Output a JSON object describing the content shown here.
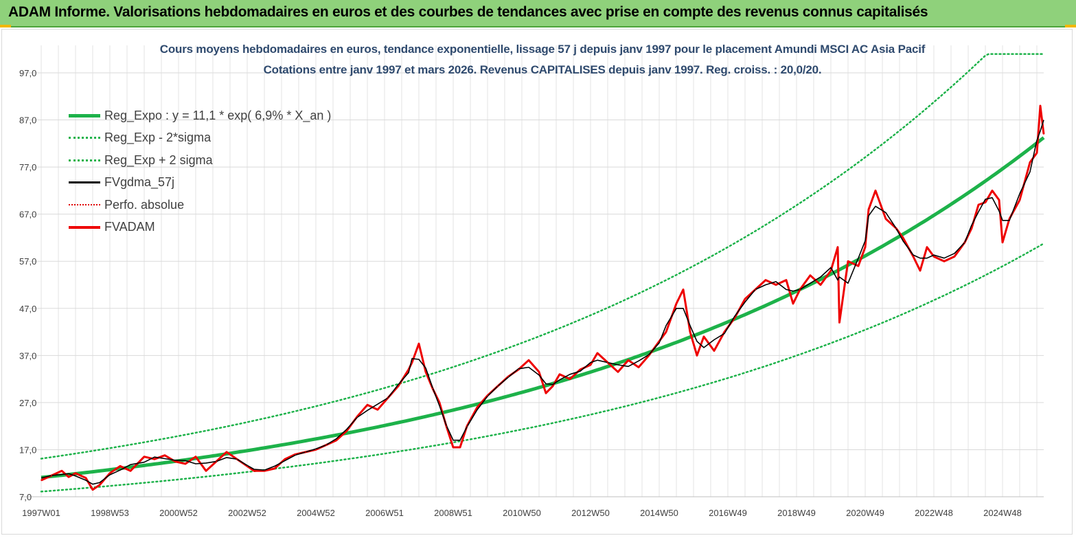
{
  "header": {
    "title": "ADAM Informe. Valorisations hebdomadaires en euros et des courbes de tendances avec prise en compte des revenus connus capitalisés"
  },
  "chart_data": {
    "type": "line",
    "title": "Cours moyens hebdomadaires en euros, tendance exponentielle, lissage 57 j depuis janv 1997  pour le placement Amundi MSCI AC Asia Pacif",
    "subtitle": "Cotations entre janv 1997 et mars 2026. Revenus CAPITALISES  depuis janv 1997. Reg. croiss. : 20,0/20.",
    "ylim": [
      7,
      100
    ],
    "y_ticks": [
      "7,0",
      "17,0",
      "27,0",
      "37,0",
      "47,0",
      "57,0",
      "67,0",
      "77,0",
      "87,0",
      "97,0"
    ],
    "y_tick_values": [
      7,
      17,
      27,
      37,
      47,
      57,
      67,
      77,
      87,
      97
    ],
    "xlim": [
      1997.0,
      2026.2
    ],
    "x_ticks": [
      "1997W01",
      "1998W53",
      "2000W52",
      "2002W52",
      "2004W52",
      "2006W51",
      "2008W51",
      "2010W50",
      "2012W50",
      "2014W50",
      "2016W49",
      "2018W49",
      "2020W49",
      "2022W48",
      "2024W48"
    ],
    "x_tick_values": [
      1997.0,
      1999.0,
      2001.0,
      2003.0,
      2005.0,
      2007.0,
      2009.0,
      2011.0,
      2013.0,
      2015.0,
      2017.0,
      2019.0,
      2021.0,
      2023.0,
      2025.0
    ],
    "series": [
      {
        "name": "Reg_Expo : y = 11,1 * exp( 6,9% *  X_an )",
        "color": "#1db24a",
        "style": "solid-thick",
        "formula": {
          "a": 11.1,
          "r": 0.069
        }
      },
      {
        "name": "Reg_Exp - 2*sigma",
        "color": "#1db24a",
        "style": "dotted",
        "formula": {
          "a": 11.1,
          "r": 0.069,
          "factor": 0.73
        }
      },
      {
        "name": "Reg_Exp + 2 sigma",
        "color": "#1db24a",
        "style": "dotted",
        "formula": {
          "a": 11.1,
          "r": 0.069,
          "factor": 1.36
        },
        "cap": 101
      },
      {
        "name": "FVgdma_57j",
        "color": "#000000",
        "style": "solid"
      },
      {
        "name": "Perfo. absolue",
        "color": "#e00000",
        "style": "dotted-thin"
      },
      {
        "name": "FVADAM",
        "color": "#ee0000",
        "style": "solid-thick",
        "x": [
          1997.0,
          1997.3,
          1997.6,
          1997.8,
          1998.0,
          1998.3,
          1998.5,
          1998.7,
          1999.0,
          1999.3,
          1999.6,
          2000.0,
          2000.3,
          2000.6,
          2000.9,
          2001.2,
          2001.5,
          2001.8,
          2002.1,
          2002.4,
          2002.7,
          2003.0,
          2003.2,
          2003.5,
          2003.8,
          2004.1,
          2004.4,
          2004.7,
          2005.0,
          2005.3,
          2005.6,
          2005.9,
          2006.2,
          2006.5,
          2006.8,
          2007.1,
          2007.4,
          2007.7,
          2007.8,
          2008.0,
          2008.2,
          2008.4,
          2008.6,
          2008.8,
          2009.0,
          2009.2,
          2009.4,
          2009.7,
          2010.0,
          2010.3,
          2010.6,
          2010.9,
          2011.2,
          2011.5,
          2011.7,
          2011.9,
          2012.1,
          2012.4,
          2012.7,
          2013.0,
          2013.2,
          2013.5,
          2013.8,
          2014.1,
          2014.4,
          2014.7,
          2015.0,
          2015.2,
          2015.5,
          2015.7,
          2015.9,
          2016.1,
          2016.3,
          2016.6,
          2016.9,
          2017.2,
          2017.5,
          2017.8,
          2018.1,
          2018.4,
          2018.7,
          2018.9,
          2019.1,
          2019.4,
          2019.7,
          2020.0,
          2020.2,
          2020.25,
          2020.5,
          2020.8,
          2021.0,
          2021.1,
          2021.3,
          2021.6,
          2021.9,
          2022.1,
          2022.4,
          2022.6,
          2022.8,
          2023.0,
          2023.3,
          2023.6,
          2023.9,
          2024.1,
          2024.3,
          2024.5,
          2024.7,
          2024.9,
          2025.0,
          2025.2,
          2025.5,
          2025.8,
          2026.0,
          2026.1,
          2026.2
        ],
        "values": [
          10.5,
          11.5,
          12.5,
          11.2,
          12.0,
          11.0,
          8.5,
          9.5,
          12.0,
          13.5,
          12.5,
          15.5,
          15.0,
          15.8,
          14.5,
          14.0,
          15.5,
          12.5,
          14.5,
          16.5,
          15.0,
          13.5,
          12.5,
          12.5,
          13.0,
          15.0,
          16.0,
          16.5,
          17.0,
          18.0,
          19.0,
          21.0,
          24.0,
          26.5,
          25.5,
          28.0,
          30.5,
          34.0,
          35.5,
          39.5,
          33.5,
          30.0,
          27.0,
          22.0,
          17.5,
          17.5,
          22.0,
          26.0,
          28.5,
          30.5,
          32.5,
          34.0,
          36.0,
          33.5,
          29.0,
          30.5,
          33.0,
          32.0,
          34.0,
          35.0,
          37.5,
          35.5,
          33.5,
          36.0,
          34.5,
          37.0,
          40.0,
          42.0,
          48.0,
          51.0,
          42.0,
          37.0,
          41.0,
          38.0,
          42.0,
          45.0,
          49.0,
          51.0,
          53.0,
          52.0,
          53.0,
          48.0,
          51.0,
          54.0,
          52.0,
          55.0,
          60.0,
          44.0,
          57.0,
          56.0,
          60.0,
          68.0,
          72.0,
          66.0,
          64.0,
          62.0,
          58.0,
          55.0,
          60.0,
          58.0,
          57.0,
          58.0,
          61.0,
          64.0,
          69.0,
          69.5,
          72.0,
          70.0,
          61.0,
          66.0,
          70.0,
          78.0,
          80.0,
          90.0,
          84.0
        ]
      }
    ]
  },
  "legend": {
    "items": [
      {
        "label": "Reg_Expo : y = 11,1 * exp( 6,9% *  X_an )",
        "color": "#1db24a"
      },
      {
        "label": "Reg_Exp - 2*sigma",
        "color": "#1db24a"
      },
      {
        "label": "Reg_Exp + 2 sigma",
        "color": "#1db24a"
      },
      {
        "label": "FVgdma_57j",
        "color": "#000000"
      },
      {
        "label": "Perfo. absolue",
        "color": "#e00000"
      },
      {
        "label": "FVADAM",
        "color": "#ee0000"
      }
    ]
  }
}
